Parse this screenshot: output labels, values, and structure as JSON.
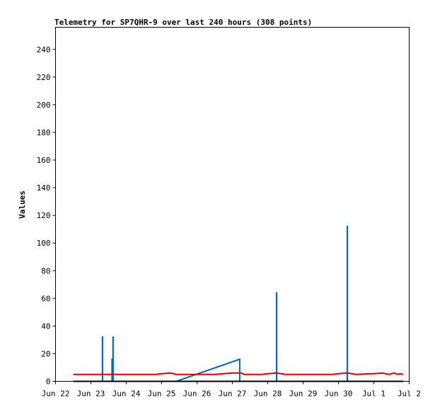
{
  "chart_data": {
    "type": "line",
    "title": "Telemetry for SP7QHR-9 over last 240 hours (308 points)",
    "ylabel": "Values",
    "xlabel": "",
    "x_ticks": [
      "Jun 22",
      "Jun 23",
      "Jun 24",
      "Jun 25",
      "Jun 26",
      "Jun 27",
      "Jun 28",
      "Jun 29",
      "Jun 30",
      "Jul 1",
      "Jul 2"
    ],
    "y_ticks": [
      0,
      20,
      40,
      60,
      80,
      100,
      120,
      140,
      160,
      180,
      200,
      220,
      240
    ],
    "xlim": [
      "Jun 22",
      "Jul 2"
    ],
    "ylim": [
      0,
      256
    ],
    "grid": false,
    "series": [
      {
        "color": "#0066cc",
        "points": [
          [
            "Jun 22 12:00",
            0
          ],
          [
            "Jun 23 07:50",
            0
          ],
          [
            "Jun 23 07:50",
            32
          ],
          [
            "Jun 23 07:55",
            32
          ],
          [
            "Jun 23 07:55",
            0
          ],
          [
            "Jun 23 14:20",
            0
          ],
          [
            "Jun 23 14:20",
            16
          ],
          [
            "Jun 23 14:22",
            16
          ],
          [
            "Jun 23 14:22",
            0
          ],
          [
            "Jun 23 15:00",
            0
          ],
          [
            "Jun 23 15:00",
            32
          ],
          [
            "Jun 23 15:05",
            32
          ],
          [
            "Jun 23 15:05",
            0
          ],
          [
            "Jun 25 10:00",
            0
          ],
          [
            "Jun 27 05:00",
            16
          ],
          [
            "Jun 27 05:00",
            0
          ],
          [
            "Jun 28 06:00",
            0
          ],
          [
            "Jun 28 06:00",
            64
          ],
          [
            "Jun 28 06:05",
            64
          ],
          [
            "Jun 28 06:05",
            0
          ],
          [
            "Jun 30 06:00",
            0
          ],
          [
            "Jun 30 06:00",
            112
          ],
          [
            "Jun 30 06:05",
            112
          ],
          [
            "Jun 30 06:05",
            0
          ],
          [
            "Jul 1 20:00",
            0
          ]
        ]
      },
      {
        "color": "#000000",
        "points": [
          [
            "Jun 22 12:00",
            0
          ],
          [
            "Jul 1 20:00",
            0
          ]
        ]
      },
      {
        "color": "#dd0000",
        "points": [
          [
            "Jun 22 12:00",
            5
          ],
          [
            "Jun 23 00:00",
            5
          ],
          [
            "Jun 24 00:00",
            5
          ],
          [
            "Jun 24 20:00",
            5
          ],
          [
            "Jun 25 00:00",
            5.5
          ],
          [
            "Jun 25 06:00",
            6
          ],
          [
            "Jun 25 10:00",
            5
          ],
          [
            "Jun 26 00:00",
            5
          ],
          [
            "Jun 26 12:00",
            5
          ],
          [
            "Jun 26 18:00",
            5.5
          ],
          [
            "Jun 27 00:00",
            6
          ],
          [
            "Jun 27 06:00",
            6
          ],
          [
            "Jun 27 08:00",
            5
          ],
          [
            "Jun 27 20:00",
            5
          ],
          [
            "Jun 28 00:00",
            5.5
          ],
          [
            "Jun 28 06:00",
            6
          ],
          [
            "Jun 28 12:00",
            5
          ],
          [
            "Jun 29 00:00",
            5
          ],
          [
            "Jun 29 12:00",
            5
          ],
          [
            "Jun 29 20:00",
            5
          ],
          [
            "Jun 30 00:00",
            5.5
          ],
          [
            "Jun 30 06:00",
            6
          ],
          [
            "Jun 30 12:00",
            5
          ],
          [
            "Jun 30 22:00",
            5.5
          ],
          [
            "Jul 1 00:00",
            5.5
          ],
          [
            "Jul 1 06:00",
            6
          ],
          [
            "Jul 1 10:00",
            5
          ],
          [
            "Jul 1 12:00",
            5.5
          ],
          [
            "Jul 1 14:00",
            6
          ],
          [
            "Jul 1 16:00",
            5
          ],
          [
            "Jul 1 18:00",
            5.5
          ],
          [
            "Jul 1 20:00",
            5
          ]
        ]
      }
    ]
  }
}
